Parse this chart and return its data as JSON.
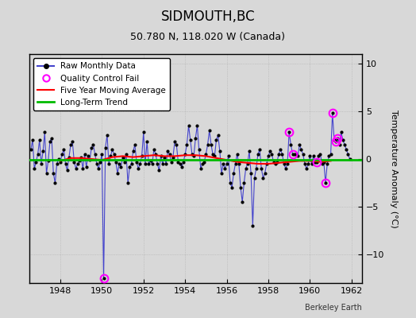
{
  "title": "SIDMOUTH,BC",
  "subtitle": "50.780 N, 118.020 W (Canada)",
  "ylabel": "Temperature Anomaly (°C)",
  "watermark": "Berkeley Earth",
  "xlim": [
    1946.5,
    1962.5
  ],
  "ylim": [
    -13,
    11
  ],
  "yticks": [
    -10,
    -5,
    0,
    5,
    10
  ],
  "xticks": [
    1948,
    1950,
    1952,
    1954,
    1956,
    1958,
    1960,
    1962
  ],
  "background_color": "#d8d8d8",
  "plot_bg_color": "#d8d8d8",
  "raw_color": "#4444cc",
  "marker_color": "#000000",
  "ma_color": "#ff0000",
  "trend_color": "#00bb00",
  "qc_color": "#ff00ff",
  "legend_labels": [
    "Raw Monthly Data",
    "Quality Control Fail",
    "Five Year Moving Average",
    "Long-Term Trend"
  ],
  "raw_data": [
    [
      1946.583,
      1.0
    ],
    [
      1946.667,
      2.0
    ],
    [
      1946.75,
      -1.0
    ],
    [
      1946.833,
      -0.3
    ],
    [
      1946.917,
      0.5
    ],
    [
      1947.0,
      2.0
    ],
    [
      1947.083,
      -0.5
    ],
    [
      1947.167,
      0.8
    ],
    [
      1947.25,
      2.8
    ],
    [
      1947.333,
      -1.5
    ],
    [
      1947.417,
      -0.2
    ],
    [
      1947.5,
      1.8
    ],
    [
      1947.583,
      2.2
    ],
    [
      1947.667,
      -1.5
    ],
    [
      1947.75,
      -2.5
    ],
    [
      1947.833,
      -0.5
    ],
    [
      1947.917,
      0.0
    ],
    [
      1948.0,
      -0.3
    ],
    [
      1948.083,
      0.5
    ],
    [
      1948.167,
      1.0
    ],
    [
      1948.25,
      -0.5
    ],
    [
      1948.333,
      -1.2
    ],
    [
      1948.417,
      0.2
    ],
    [
      1948.5,
      1.5
    ],
    [
      1948.583,
      1.8
    ],
    [
      1948.667,
      -0.3
    ],
    [
      1948.75,
      -1.0
    ],
    [
      1948.833,
      -0.5
    ],
    [
      1948.917,
      -0.2
    ],
    [
      1949.0,
      0.2
    ],
    [
      1949.083,
      -1.0
    ],
    [
      1949.167,
      0.5
    ],
    [
      1949.25,
      -0.8
    ],
    [
      1949.333,
      0.3
    ],
    [
      1949.417,
      -0.1
    ],
    [
      1949.5,
      1.2
    ],
    [
      1949.583,
      1.5
    ],
    [
      1949.667,
      0.5
    ],
    [
      1949.75,
      -0.5
    ],
    [
      1949.833,
      -1.0
    ],
    [
      1949.917,
      -0.3
    ],
    [
      1950.0,
      0.5
    ],
    [
      1950.083,
      -12.5
    ],
    [
      1950.167,
      1.2
    ],
    [
      1950.25,
      2.5
    ],
    [
      1950.333,
      -0.5
    ],
    [
      1950.417,
      0.3
    ],
    [
      1950.5,
      1.0
    ],
    [
      1950.583,
      0.5
    ],
    [
      1950.667,
      -0.3
    ],
    [
      1950.75,
      -1.5
    ],
    [
      1950.833,
      -0.5
    ],
    [
      1950.917,
      -0.8
    ],
    [
      1951.0,
      0.2
    ],
    [
      1951.083,
      -0.3
    ],
    [
      1951.167,
      0.5
    ],
    [
      1951.25,
      -2.5
    ],
    [
      1951.333,
      -0.8
    ],
    [
      1951.417,
      -0.5
    ],
    [
      1951.5,
      0.8
    ],
    [
      1951.583,
      1.5
    ],
    [
      1951.667,
      -0.3
    ],
    [
      1951.75,
      -1.0
    ],
    [
      1951.833,
      -0.5
    ],
    [
      1951.917,
      0.3
    ],
    [
      1952.0,
      2.8
    ],
    [
      1952.083,
      -0.5
    ],
    [
      1952.167,
      1.8
    ],
    [
      1952.25,
      -0.5
    ],
    [
      1952.333,
      -0.2
    ],
    [
      1952.417,
      -0.5
    ],
    [
      1952.5,
      1.0
    ],
    [
      1952.583,
      0.5
    ],
    [
      1952.667,
      -0.5
    ],
    [
      1952.75,
      -1.2
    ],
    [
      1952.833,
      0.3
    ],
    [
      1952.917,
      -0.5
    ],
    [
      1953.0,
      0.2
    ],
    [
      1953.083,
      -0.5
    ],
    [
      1953.167,
      0.8
    ],
    [
      1953.25,
      0.5
    ],
    [
      1953.333,
      -0.3
    ],
    [
      1953.417,
      0.2
    ],
    [
      1953.5,
      1.8
    ],
    [
      1953.583,
      1.5
    ],
    [
      1953.667,
      -0.3
    ],
    [
      1953.75,
      -0.5
    ],
    [
      1953.833,
      -0.8
    ],
    [
      1953.917,
      -0.3
    ],
    [
      1954.0,
      0.5
    ],
    [
      1954.083,
      1.5
    ],
    [
      1954.167,
      3.5
    ],
    [
      1954.25,
      2.0
    ],
    [
      1954.333,
      0.5
    ],
    [
      1954.417,
      0.3
    ],
    [
      1954.5,
      2.2
    ],
    [
      1954.583,
      3.5
    ],
    [
      1954.667,
      1.0
    ],
    [
      1954.75,
      -1.0
    ],
    [
      1954.833,
      -0.5
    ],
    [
      1954.917,
      -0.3
    ],
    [
      1955.0,
      0.5
    ],
    [
      1955.083,
      1.5
    ],
    [
      1955.167,
      3.0
    ],
    [
      1955.25,
      1.5
    ],
    [
      1955.333,
      0.5
    ],
    [
      1955.417,
      0.3
    ],
    [
      1955.5,
      2.0
    ],
    [
      1955.583,
      2.5
    ],
    [
      1955.667,
      0.8
    ],
    [
      1955.75,
      -1.5
    ],
    [
      1955.833,
      -0.5
    ],
    [
      1955.917,
      -1.0
    ],
    [
      1956.0,
      -0.5
    ],
    [
      1956.083,
      0.3
    ],
    [
      1956.167,
      -2.5
    ],
    [
      1956.25,
      -3.0
    ],
    [
      1956.333,
      -1.5
    ],
    [
      1956.417,
      -0.5
    ],
    [
      1956.5,
      0.5
    ],
    [
      1956.583,
      -0.5
    ],
    [
      1956.667,
      -3.0
    ],
    [
      1956.75,
      -4.5
    ],
    [
      1956.833,
      -2.5
    ],
    [
      1956.917,
      -1.0
    ],
    [
      1957.0,
      -0.5
    ],
    [
      1957.083,
      0.8
    ],
    [
      1957.167,
      -1.5
    ],
    [
      1957.25,
      -7.0
    ],
    [
      1957.333,
      -2.0
    ],
    [
      1957.417,
      -1.0
    ],
    [
      1957.5,
      0.5
    ],
    [
      1957.583,
      1.0
    ],
    [
      1957.667,
      -1.0
    ],
    [
      1957.75,
      -2.0
    ],
    [
      1957.833,
      -1.5
    ],
    [
      1957.917,
      -0.5
    ],
    [
      1958.0,
      0.3
    ],
    [
      1958.083,
      0.8
    ],
    [
      1958.167,
      0.5
    ],
    [
      1958.25,
      -0.3
    ],
    [
      1958.333,
      -0.5
    ],
    [
      1958.417,
      -0.3
    ],
    [
      1958.5,
      0.5
    ],
    [
      1958.583,
      1.0
    ],
    [
      1958.667,
      0.5
    ],
    [
      1958.75,
      -0.5
    ],
    [
      1958.833,
      -1.0
    ],
    [
      1958.917,
      -0.5
    ],
    [
      1959.0,
      2.8
    ],
    [
      1959.083,
      1.5
    ],
    [
      1959.167,
      0.5
    ],
    [
      1959.25,
      0.5
    ],
    [
      1959.333,
      0.5
    ],
    [
      1959.417,
      0.3
    ],
    [
      1959.5,
      1.5
    ],
    [
      1959.583,
      1.0
    ],
    [
      1959.667,
      0.5
    ],
    [
      1959.75,
      -0.5
    ],
    [
      1959.833,
      -1.0
    ],
    [
      1959.917,
      -0.5
    ],
    [
      1960.0,
      0.3
    ],
    [
      1960.083,
      -0.5
    ],
    [
      1960.167,
      0.3
    ],
    [
      1960.25,
      -0.3
    ],
    [
      1960.333,
      -0.3
    ],
    [
      1960.417,
      0.3
    ],
    [
      1960.5,
      0.5
    ],
    [
      1960.583,
      -0.5
    ],
    [
      1960.667,
      -0.3
    ],
    [
      1960.75,
      -2.5
    ],
    [
      1960.833,
      -0.5
    ],
    [
      1960.917,
      0.3
    ],
    [
      1961.0,
      0.5
    ],
    [
      1961.083,
      4.8
    ],
    [
      1961.167,
      2.0
    ],
    [
      1961.25,
      1.8
    ],
    [
      1961.333,
      2.2
    ],
    [
      1961.417,
      1.5
    ],
    [
      1961.5,
      2.8
    ],
    [
      1961.583,
      2.0
    ],
    [
      1961.667,
      1.5
    ],
    [
      1961.75,
      1.0
    ],
    [
      1961.833,
      0.5
    ],
    [
      1961.917,
      0.0
    ]
  ],
  "qc_fail_points": [
    [
      1950.083,
      -12.5
    ]
  ],
  "qc_fail_recent": [
    [
      1959.0,
      2.8
    ],
    [
      1959.167,
      0.5
    ],
    [
      1960.333,
      -0.3
    ],
    [
      1960.75,
      -2.5
    ],
    [
      1961.083,
      4.8
    ],
    [
      1961.25,
      1.8
    ],
    [
      1961.333,
      2.2
    ]
  ],
  "moving_avg": [
    [
      1948.0,
      -0.2
    ],
    [
      1948.5,
      0.1
    ],
    [
      1949.0,
      0.1
    ],
    [
      1949.5,
      0.0
    ],
    [
      1950.0,
      -0.1
    ],
    [
      1950.5,
      0.2
    ],
    [
      1951.0,
      0.3
    ],
    [
      1951.5,
      0.2
    ],
    [
      1952.0,
      0.3
    ],
    [
      1952.5,
      0.4
    ],
    [
      1953.0,
      0.3
    ],
    [
      1953.5,
      0.3
    ],
    [
      1954.0,
      0.4
    ],
    [
      1954.5,
      0.4
    ],
    [
      1955.0,
      0.3
    ],
    [
      1955.5,
      0.1
    ],
    [
      1956.0,
      -0.1
    ],
    [
      1956.5,
      -0.3
    ],
    [
      1957.0,
      -0.4
    ],
    [
      1957.5,
      -0.5
    ],
    [
      1958.0,
      -0.5
    ],
    [
      1958.5,
      -0.4
    ],
    [
      1959.0,
      -0.3
    ],
    [
      1959.5,
      -0.2
    ],
    [
      1960.0,
      -0.2
    ],
    [
      1960.5,
      -0.3
    ],
    [
      1961.0,
      -0.2
    ]
  ],
  "trend_line": [
    [
      1946.5,
      -0.1
    ],
    [
      1962.5,
      -0.1
    ]
  ]
}
